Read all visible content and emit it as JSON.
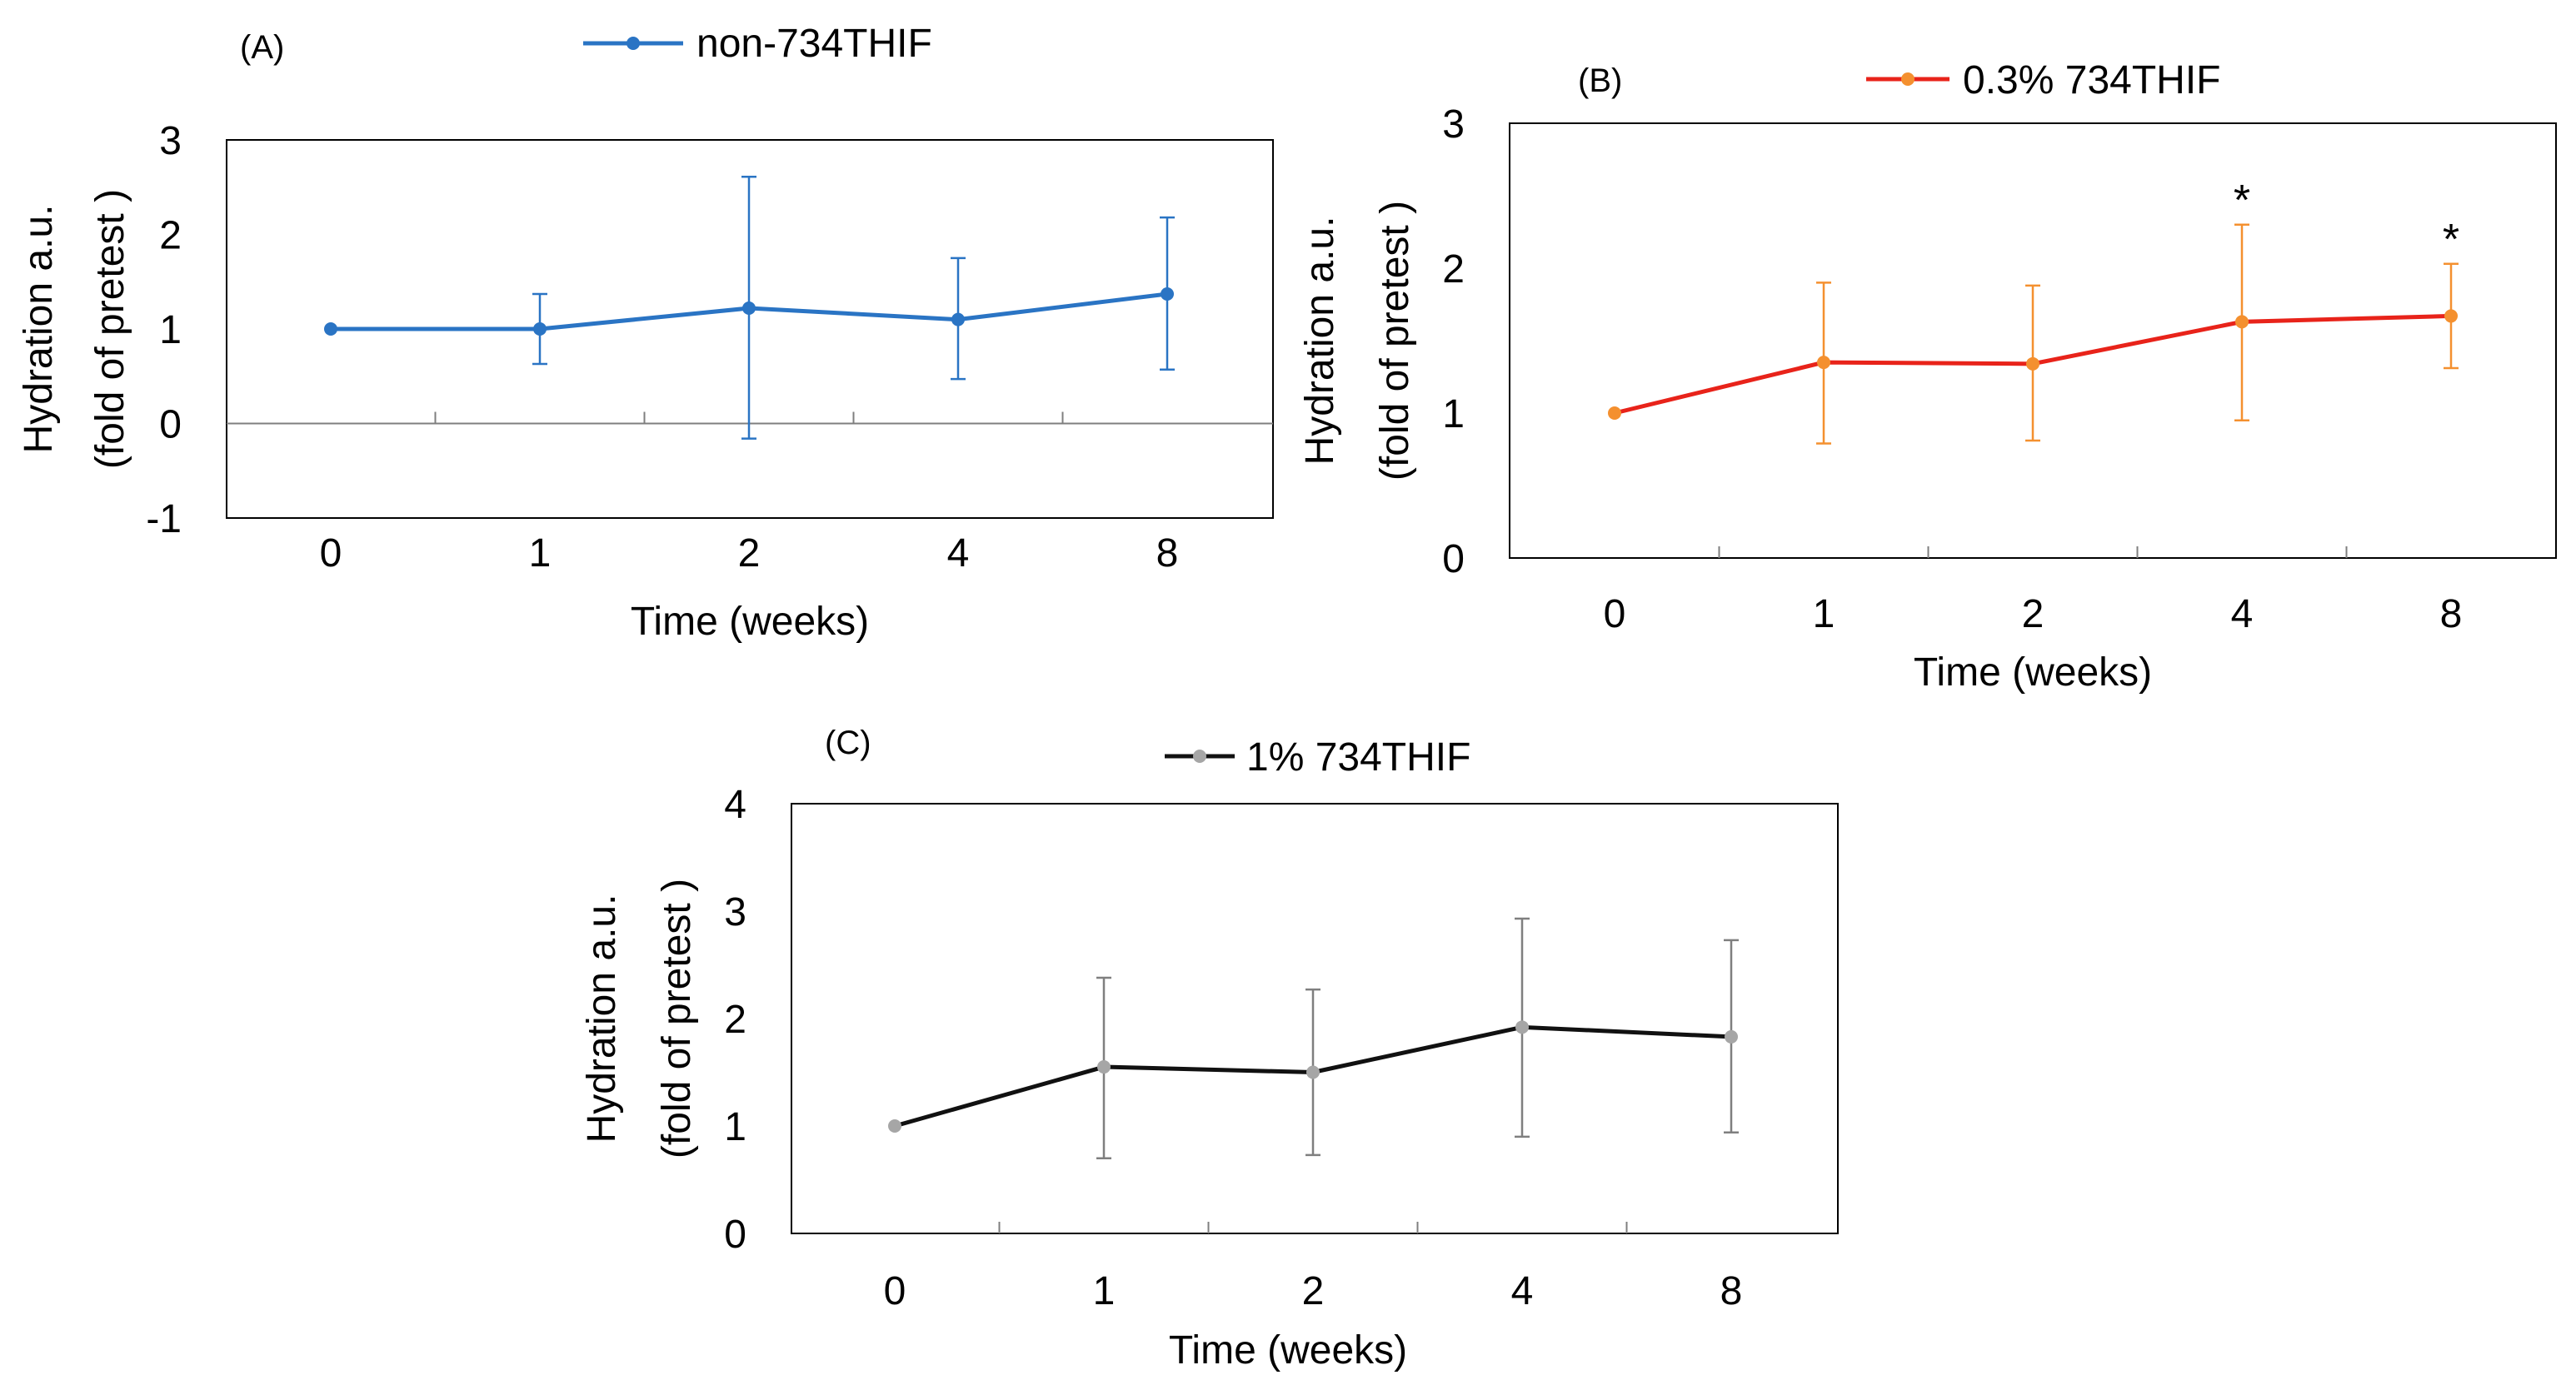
{
  "chart_data": [
    {
      "type": "line",
      "panel_label": "(A)",
      "title": "",
      "categories": [
        "0",
        "1",
        "2",
        "4",
        "8"
      ],
      "series": [
        {
          "name": "non-734THIF",
          "values": [
            1.0,
            1.0,
            1.22,
            1.1,
            1.37
          ],
          "error_low": [
            1.0,
            0.63,
            -0.16,
            0.47,
            0.57
          ],
          "error_high": [
            1.0,
            1.37,
            2.61,
            1.75,
            2.18
          ]
        }
      ],
      "xlabel": "Time (weeks)",
      "ylabel_line1": "Hydration a.u.",
      "ylabel_line2": "(fold of pretest )",
      "ylim": [
        -1,
        3
      ],
      "yticks": [
        "-1",
        "0",
        "1",
        "2",
        "3"
      ],
      "significance": [
        "",
        "",
        "",
        "",
        ""
      ],
      "colors": {
        "line": "#2a74c4",
        "marker": "#2a74c4",
        "error": "#2a74c4"
      },
      "legend_position": "top"
    },
    {
      "type": "line",
      "panel_label": "(B)",
      "title": "",
      "categories": [
        "0",
        "1",
        "2",
        "4",
        "8"
      ],
      "series": [
        {
          "name": "0.3% 734THIF",
          "values": [
            1.0,
            1.35,
            1.34,
            1.63,
            1.67
          ],
          "error_low": [
            1.0,
            0.79,
            0.81,
            0.95,
            1.31
          ],
          "error_high": [
            1.0,
            1.9,
            1.88,
            2.3,
            2.03
          ]
        }
      ],
      "xlabel": "Time (weeks)",
      "ylabel_line1": "Hydration a.u.",
      "ylabel_line2": "(fold of pretest )",
      "ylim": [
        0,
        3
      ],
      "yticks": [
        "0",
        "1",
        "2",
        "3"
      ],
      "significance": [
        "",
        "",
        "",
        "*",
        "*"
      ],
      "colors": {
        "line": "#e8231a",
        "marker": "#f4902f",
        "error": "#f4902f"
      },
      "legend_position": "top"
    },
    {
      "type": "line",
      "panel_label": "(C)",
      "title": "",
      "categories": [
        "0",
        "1",
        "2",
        "4",
        "8"
      ],
      "series": [
        {
          "name": "1% 734THIF",
          "values": [
            1.0,
            1.55,
            1.5,
            1.92,
            1.83
          ],
          "error_low": [
            1.0,
            0.7,
            0.73,
            0.9,
            0.94
          ],
          "error_high": [
            1.0,
            2.38,
            2.27,
            2.93,
            2.73
          ]
        }
      ],
      "xlabel": "Time (weeks)",
      "ylabel_line1": "Hydration a.u.",
      "ylabel_line2": "(fold of pretest )",
      "ylim": [
        0,
        4
      ],
      "yticks": [
        "0",
        "1",
        "2",
        "3",
        "4"
      ],
      "significance": [
        "",
        "",
        "",
        "",
        ""
      ],
      "colors": {
        "line": "#111111",
        "marker": "#a6a6a6",
        "error": "#7f7f7f"
      },
      "legend_position": "top"
    }
  ]
}
